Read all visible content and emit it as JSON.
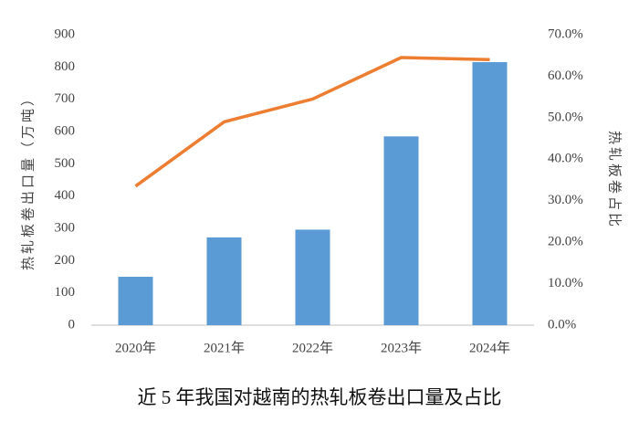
{
  "chart_data": {
    "type": "bar",
    "title": "近 5 年我国对越南的热轧板卷出口量及占比",
    "y_label": "热轧板卷出口量（万吨）",
    "y2_label": "热轧板卷占比",
    "categories": [
      "2020年",
      "2021年",
      "2022年",
      "2023年",
      "2024年"
    ],
    "series": [
      {
        "type": "bar",
        "color": "#5b9bd5",
        "values": [
          150,
          272,
          296,
          585,
          815
        ]
      },
      {
        "type": "line",
        "axis": "y2",
        "color": "#ed7d31",
        "values": [
          33.5,
          49,
          54.5,
          64.5,
          64
        ]
      }
    ],
    "ylim": [
      0,
      900
    ],
    "yticks": [
      0,
      100,
      200,
      300,
      400,
      500,
      600,
      700,
      800,
      900
    ],
    "y2lim": [
      0,
      70
    ],
    "y2ticks": [
      {
        "value": 0,
        "label": "0.0%"
      },
      {
        "value": 10,
        "label": "10.0%"
      },
      {
        "value": 20,
        "label": "20.0%"
      },
      {
        "value": 30,
        "label": "30.0%"
      },
      {
        "value": 40,
        "label": "40.0%"
      },
      {
        "value": 50,
        "label": "50.0%"
      },
      {
        "value": 60,
        "label": "60.0%"
      },
      {
        "value": 70,
        "label": "70.0%"
      }
    ]
  }
}
